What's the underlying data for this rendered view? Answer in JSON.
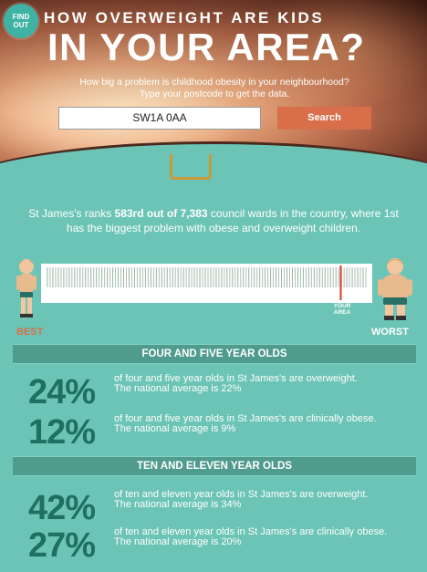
{
  "header": {
    "badge": "FIND OUT",
    "title_line1": "HOW OVERWEIGHT ARE KIDS",
    "title_line2": "IN YOUR AREA?",
    "subtitle_line1": "How big a problem is childhood obesity in your neighbourhood?",
    "subtitle_line2": "Type your postcode to get the data."
  },
  "search": {
    "value": "SW1A 0AA",
    "button_label": "Search"
  },
  "ranking": {
    "text_prefix": "St James's ranks ",
    "rank_bold": "583rd out of 7,383",
    "text_suffix": " council wards in the country, where 1st has the biggest problem with obese and overweight children.",
    "rank": 583,
    "total": 7383,
    "your_area_label_1": "YOUR",
    "your_area_label_2": "AREA",
    "best_label": "BEST",
    "worst_label": "WORST"
  },
  "sections": [
    {
      "title": "FOUR AND FIVE YEAR OLDS",
      "stats": [
        {
          "percent": "24%",
          "description": "of four and five year olds in St James's are overweight.",
          "national": "The national average is 22%"
        },
        {
          "percent": "12%",
          "description": "of four and five year olds in St James's are clinically obese.",
          "national": "The national average is 9%"
        }
      ]
    },
    {
      "title": "TEN AND ELEVEN YEAR OLDS",
      "stats": [
        {
          "percent": "42%",
          "description": "of ten and eleven year olds in St James's are overweight.",
          "national": "The national average is 34%"
        },
        {
          "percent": "27%",
          "description": "of ten and eleven year olds in St James's are clinically obese.",
          "national": "The national average is 20%"
        }
      ]
    }
  ],
  "colors": {
    "teal_bg": "#6cc4b6",
    "accent_orange": "#d96e4a",
    "dark_teal_text": "#1f6f63",
    "band": "#4f9b8e",
    "marker_red": "#d83a2a"
  }
}
